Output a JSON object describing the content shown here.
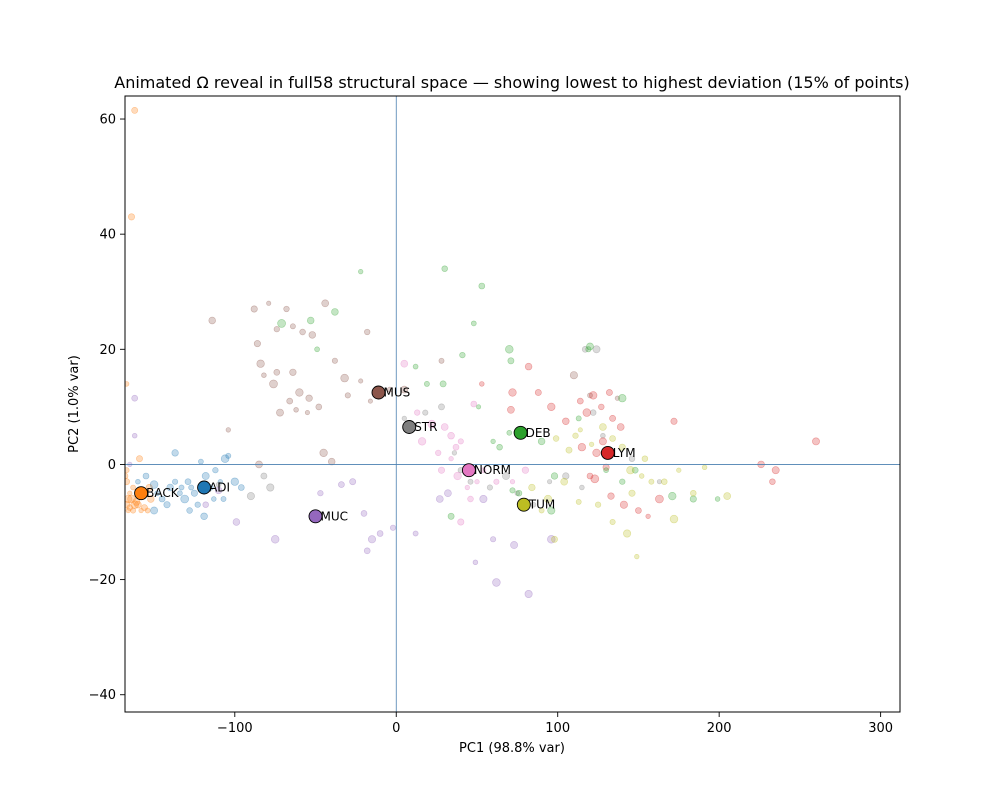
{
  "chart_data": {
    "type": "scatter",
    "title": "Animated Ω reveal in full58 structural space — showing lowest to highest deviation (15% of points)",
    "xlabel": "PC1 (98.8% var)",
    "ylabel": "PC2 (1.0% var)",
    "xlim": [
      -168,
      312
    ],
    "ylim": [
      -43,
      64
    ],
    "xticks": [
      -100,
      0,
      100,
      200,
      300
    ],
    "yticks": [
      -40,
      -20,
      0,
      20,
      40,
      60
    ],
    "reference_lines": {
      "x": 0,
      "y": 0,
      "color": "#4a7fb0"
    },
    "grid": false,
    "centroids": [
      {
        "label": "ADI",
        "color": "#1f77b4",
        "x": -119,
        "y": -4
      },
      {
        "label": "BACK",
        "color": "#ff7f0e",
        "x": -158,
        "y": -5
      },
      {
        "label": "DEB",
        "color": "#2ca02c",
        "x": 77,
        "y": 5.5
      },
      {
        "label": "LYM",
        "color": "#d62728",
        "x": 131,
        "y": 2
      },
      {
        "label": "MUC",
        "color": "#9467bd",
        "x": -50,
        "y": -9
      },
      {
        "label": "MUS",
        "color": "#8c564b",
        "x": -11,
        "y": 12.5
      },
      {
        "label": "NORM",
        "color": "#e377c2",
        "x": 45,
        "y": -1
      },
      {
        "label": "STR",
        "color": "#7f7f7f",
        "x": 8,
        "y": 6.5
      },
      {
        "label": "TUM",
        "color": "#bcbd22",
        "x": 79,
        "y": -7
      }
    ],
    "points": [
      {
        "class": "BACK",
        "color": "#ff7f0e",
        "xy": [
          [
            -162,
            61.5
          ],
          [
            -164,
            43
          ],
          [
            -167,
            14
          ],
          [
            -167,
            -1
          ],
          [
            -168,
            -2
          ],
          [
            -167,
            -3
          ],
          [
            -165,
            -5
          ],
          [
            -166,
            -6
          ],
          [
            -167,
            -7
          ],
          [
            -165,
            -7.5
          ],
          [
            -163,
            -8
          ],
          [
            -161,
            -6.5
          ],
          [
            -160,
            -7
          ],
          [
            -158,
            -8
          ],
          [
            -156,
            -7.5
          ],
          [
            -154,
            -8
          ],
          [
            -152,
            -6
          ],
          [
            -156,
            -5
          ],
          [
            -153,
            -4
          ],
          [
            -159,
            1
          ],
          [
            -163,
            -4
          ],
          [
            -166,
            -8
          ],
          [
            -164,
            -6
          ],
          [
            -162,
            -7
          ]
        ]
      },
      {
        "class": "ADI",
        "color": "#1f77b4",
        "xy": [
          [
            -160,
            -3
          ],
          [
            -155,
            -2
          ],
          [
            -150,
            -3.5
          ],
          [
            -148,
            -5
          ],
          [
            -145,
            -6
          ],
          [
            -142,
            -7
          ],
          [
            -140,
            -4
          ],
          [
            -137,
            -3
          ],
          [
            -134,
            -5
          ],
          [
            -131,
            -6
          ],
          [
            -129,
            -3
          ],
          [
            -127,
            -4
          ],
          [
            -125,
            -5
          ],
          [
            -123,
            -7
          ],
          [
            -121,
            0.5
          ],
          [
            -118,
            -2
          ],
          [
            -115,
            -4
          ],
          [
            -112,
            -1
          ],
          [
            -109,
            -3
          ],
          [
            -106,
            1
          ],
          [
            -104,
            1.5
          ],
          [
            -100,
            -3
          ],
          [
            -96,
            -4
          ],
          [
            -133,
            -4
          ],
          [
            -137,
            2
          ],
          [
            -128,
            -8
          ],
          [
            -150,
            -8
          ],
          [
            -119,
            -9
          ],
          [
            -113,
            -6
          ],
          [
            -107,
            -6
          ]
        ]
      },
      {
        "class": "MUC",
        "color": "#9467bd",
        "xy": [
          [
            -162,
            11.5
          ],
          [
            -162,
            5
          ],
          [
            -165,
            0
          ],
          [
            -118,
            -7
          ],
          [
            -110,
            -4.5
          ],
          [
            -99,
            -10
          ],
          [
            -75,
            -13
          ],
          [
            -47,
            -5
          ],
          [
            -34,
            -3.5
          ],
          [
            -27,
            -3
          ],
          [
            -20,
            -8.5
          ],
          [
            -15,
            -13
          ],
          [
            -10,
            -12
          ],
          [
            -18,
            -15
          ],
          [
            -2,
            -11
          ],
          [
            12,
            -12
          ],
          [
            27,
            -6
          ],
          [
            49,
            -17
          ],
          [
            60,
            -13
          ],
          [
            73,
            -14
          ],
          [
            82,
            -22.5
          ],
          [
            62,
            -20.5
          ],
          [
            96,
            -13
          ],
          [
            54,
            -6
          ],
          [
            32,
            -5
          ]
        ]
      },
      {
        "class": "MUS",
        "color": "#8c564b",
        "xy": [
          [
            -114,
            25
          ],
          [
            -88,
            27
          ],
          [
            -79,
            28
          ],
          [
            -74,
            23.5
          ],
          [
            -68,
            27
          ],
          [
            -64,
            24
          ],
          [
            -58,
            23
          ],
          [
            -52,
            22.5
          ],
          [
            -44,
            28
          ],
          [
            -38,
            18
          ],
          [
            -32,
            15
          ],
          [
            -22,
            14.5
          ],
          [
            -18,
            23
          ],
          [
            -64,
            16
          ],
          [
            -74,
            16
          ],
          [
            -82,
            15.5
          ],
          [
            -76,
            14
          ],
          [
            -66,
            11
          ],
          [
            -60,
            12.5
          ],
          [
            -54,
            11.5
          ],
          [
            -48,
            10
          ],
          [
            -62,
            9.5
          ],
          [
            -72,
            9
          ],
          [
            -84,
            17.5
          ],
          [
            -30,
            12
          ],
          [
            -16,
            11
          ],
          [
            -4,
            13
          ],
          [
            5,
            13
          ],
          [
            -85,
            0
          ],
          [
            -40,
            0.5
          ],
          [
            -45,
            2
          ],
          [
            28,
            18
          ],
          [
            110,
            15.5
          ],
          [
            120,
            12
          ],
          [
            137,
            11.5
          ],
          [
            -104,
            6
          ],
          [
            -55,
            9
          ],
          [
            -86,
            21
          ]
        ]
      },
      {
        "class": "STR",
        "color": "#7f7f7f",
        "xy": [
          [
            -78,
            -4
          ],
          [
            -90,
            -5.5
          ],
          [
            -110,
            -3.5
          ],
          [
            -82,
            -2
          ],
          [
            5,
            8
          ],
          [
            18,
            9
          ],
          [
            28,
            10
          ],
          [
            36,
            2
          ],
          [
            40,
            -1
          ],
          [
            46,
            -3
          ],
          [
            58,
            -4
          ],
          [
            68,
            -2
          ],
          [
            75,
            -5
          ],
          [
            85,
            -7
          ],
          [
            95,
            -3
          ],
          [
            105,
            -2
          ],
          [
            115,
            -4
          ],
          [
            122,
            9
          ],
          [
            128,
            5
          ],
          [
            132,
            2
          ],
          [
            146,
            1
          ],
          [
            163,
            -3
          ],
          [
            124,
            20
          ],
          [
            117,
            20
          ]
        ]
      },
      {
        "class": "NORM",
        "color": "#e377c2",
        "xy": [
          [
            5,
            17.5
          ],
          [
            13,
            9
          ],
          [
            22,
            7
          ],
          [
            30,
            6.5
          ],
          [
            34,
            5
          ],
          [
            40,
            4
          ],
          [
            26,
            2
          ],
          [
            34,
            1
          ],
          [
            38,
            -2
          ],
          [
            44,
            -4
          ],
          [
            50,
            -3
          ],
          [
            54,
            -1
          ],
          [
            62,
            -3
          ],
          [
            72,
            -3
          ],
          [
            80,
            -1
          ],
          [
            48,
            10.5
          ],
          [
            46,
            -6
          ],
          [
            40,
            -10
          ],
          [
            16,
            4
          ],
          [
            28,
            -1
          ],
          [
            37,
            3
          ]
        ]
      },
      {
        "class": "LYM",
        "color": "#d62728",
        "xy": [
          [
            53,
            14
          ],
          [
            72,
            12.5
          ],
          [
            82,
            17
          ],
          [
            88,
            12.5
          ],
          [
            96,
            10
          ],
          [
            105,
            7.5
          ],
          [
            114,
            11
          ],
          [
            118,
            9
          ],
          [
            122,
            12
          ],
          [
            127,
            10
          ],
          [
            134,
            8
          ],
          [
            139,
            6.5
          ],
          [
            128,
            4
          ],
          [
            124,
            2
          ],
          [
            130,
            -0.5
          ],
          [
            123,
            -2.5
          ],
          [
            133,
            -5.5
          ],
          [
            141,
            -7
          ],
          [
            150,
            -8
          ],
          [
            156,
            -9
          ],
          [
            163,
            -6
          ],
          [
            172,
            7.5
          ],
          [
            226,
            0
          ],
          [
            233,
            -3
          ],
          [
            235,
            -1
          ],
          [
            260,
            4
          ],
          [
            132,
            12.5
          ],
          [
            120,
            -2
          ],
          [
            115,
            3
          ],
          [
            71,
            9.5
          ]
        ]
      },
      {
        "class": "DEB",
        "color": "#2ca02c",
        "xy": [
          [
            -22,
            33.5
          ],
          [
            30,
            34
          ],
          [
            53,
            31
          ],
          [
            -71,
            24.5
          ],
          [
            -53,
            25
          ],
          [
            -49,
            20
          ],
          [
            -38,
            26.5
          ],
          [
            12,
            17
          ],
          [
            19,
            14
          ],
          [
            29,
            14
          ],
          [
            41,
            19
          ],
          [
            51,
            10
          ],
          [
            70,
            20
          ],
          [
            71,
            18
          ],
          [
            60,
            4
          ],
          [
            64,
            3
          ],
          [
            70,
            5.5
          ],
          [
            90,
            4
          ],
          [
            113,
            8
          ],
          [
            120,
            20.5
          ],
          [
            119,
            20
          ],
          [
            140,
            11.5
          ],
          [
            98,
            -2
          ],
          [
            76,
            -5
          ],
          [
            96,
            -8
          ],
          [
            130,
            -1
          ],
          [
            140,
            -3
          ],
          [
            148,
            -1
          ],
          [
            171,
            -5.5
          ],
          [
            184,
            -6
          ],
          [
            199,
            -6
          ],
          [
            48,
            24.5
          ],
          [
            34,
            -9
          ],
          [
            72,
            -4.5
          ]
        ]
      },
      {
        "class": "TUM",
        "color": "#bcbd22",
        "xy": [
          [
            99,
            4.5
          ],
          [
            107,
            2.5
          ],
          [
            111,
            5
          ],
          [
            114,
            6
          ],
          [
            121,
            3.5
          ],
          [
            128,
            6.5
          ],
          [
            134,
            4.5
          ],
          [
            140,
            3
          ],
          [
            145,
            -1
          ],
          [
            152,
            -2
          ],
          [
            154,
            1
          ],
          [
            158,
            -3
          ],
          [
            166,
            -3
          ],
          [
            175,
            -1
          ],
          [
            191,
            -0.5
          ],
          [
            205,
            -5.5
          ],
          [
            143,
            -12
          ],
          [
            149,
            -16
          ],
          [
            146,
            -5
          ],
          [
            134,
            -10
          ],
          [
            125,
            -7
          ],
          [
            113,
            -6.5
          ],
          [
            104,
            -3
          ],
          [
            98,
            -13
          ],
          [
            90,
            -8
          ],
          [
            84,
            -4
          ],
          [
            94,
            -6
          ],
          [
            172,
            -9.5
          ],
          [
            184,
            -5
          ]
        ]
      }
    ]
  }
}
